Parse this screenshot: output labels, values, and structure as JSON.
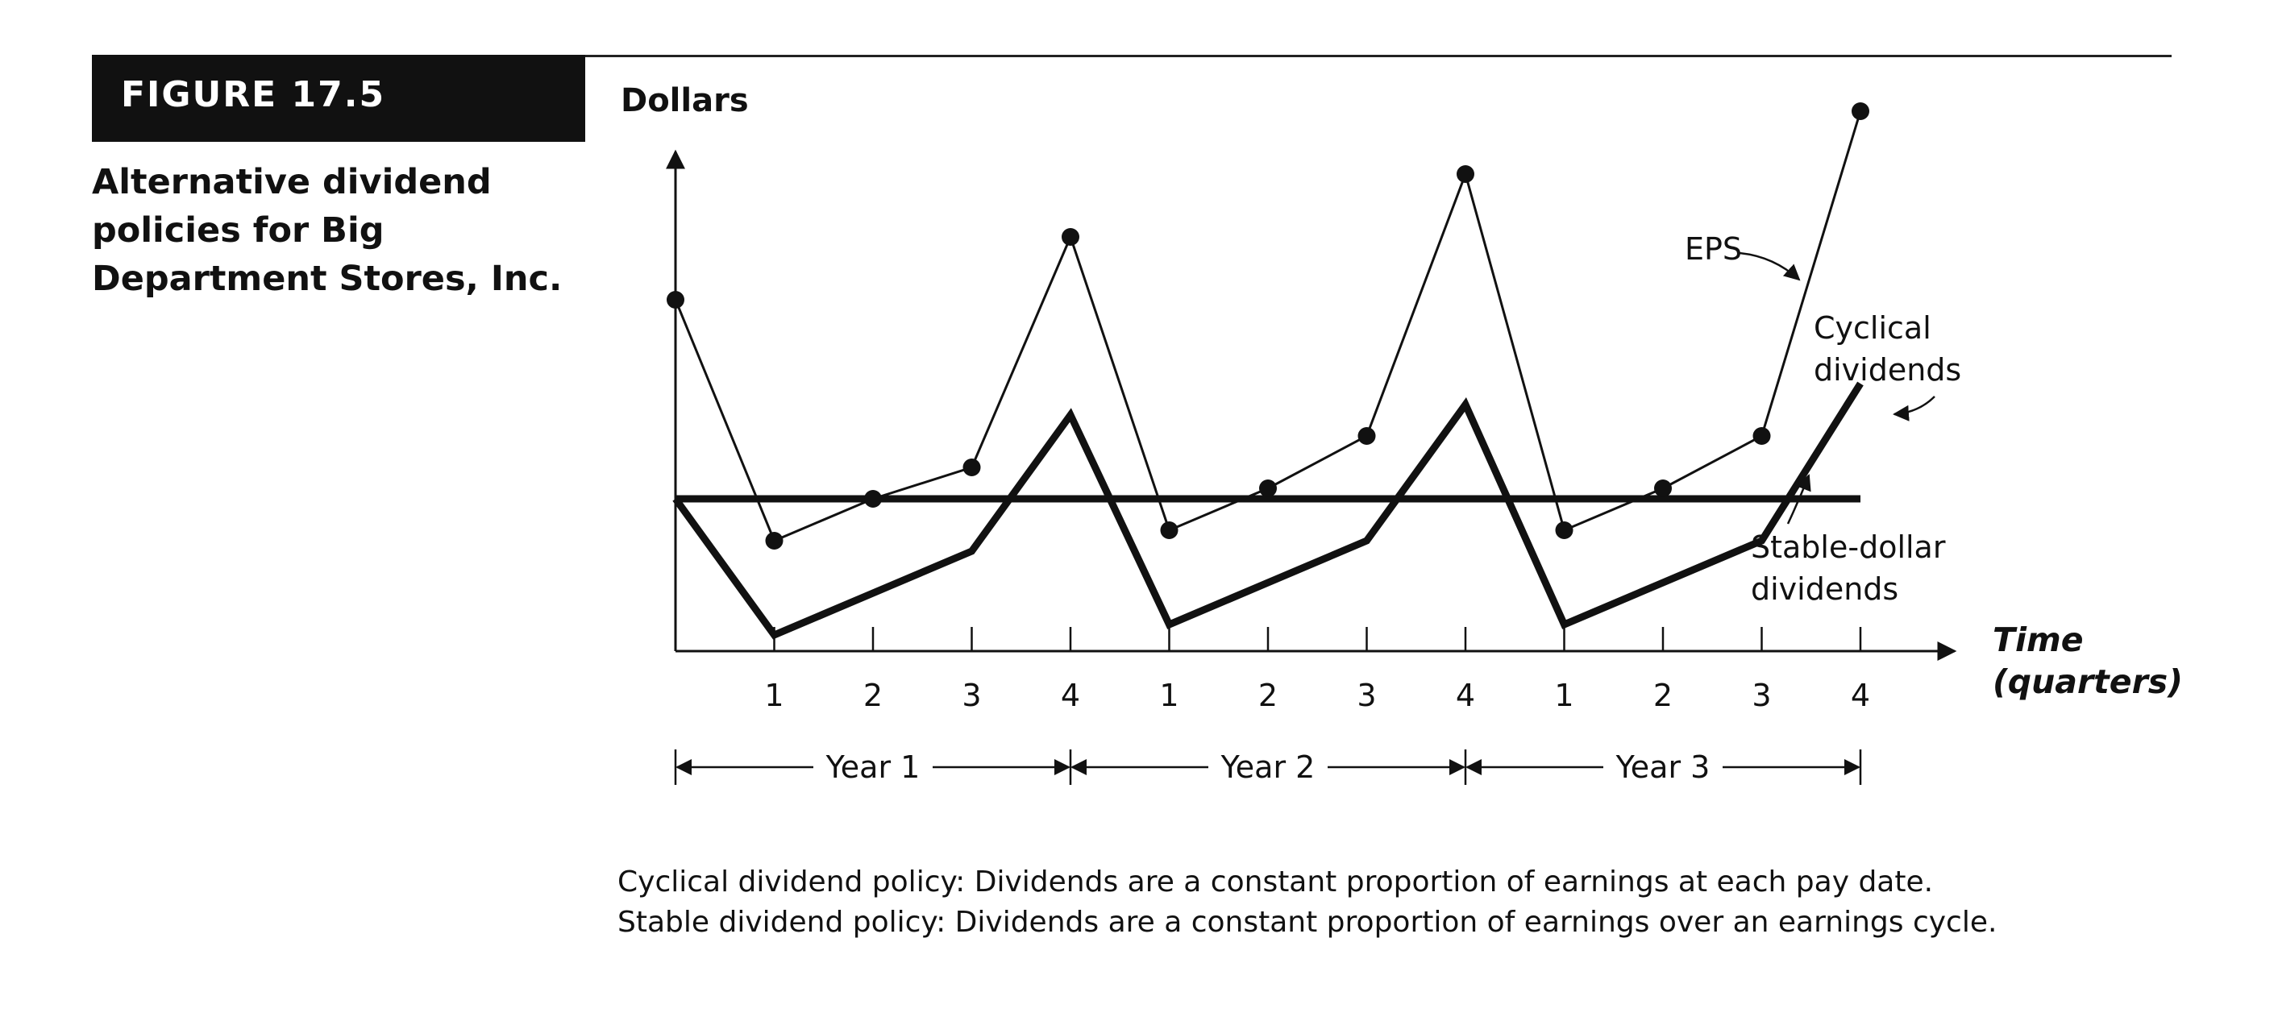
{
  "figure": {
    "label": "FIGURE 17.5",
    "caption": "Alternative dividend policies for Big Department Stores, Inc."
  },
  "notes": [
    "Cyclical dividend policy: Dividends are a constant proportion of earnings at each pay date.",
    "Stable dividend policy: Dividends are a constant proportion of earnings over an earnings cycle."
  ],
  "chart_data": {
    "type": "line",
    "ylabel": "Dollars",
    "xlabel_lines": [
      "Time",
      "(quarters)"
    ],
    "x_ticks": [
      "1",
      "2",
      "3",
      "4",
      "1",
      "2",
      "3",
      "4",
      "1",
      "2",
      "3",
      "4"
    ],
    "periods": [
      "Year 1",
      "Year 2",
      "Year 3"
    ],
    "y_ticks_shown": false,
    "grid": false,
    "x": [
      0,
      1,
      2,
      3,
      4,
      5,
      6,
      7,
      8,
      9,
      10,
      11,
      12
    ],
    "series": [
      {
        "name": "EPS",
        "style": "thin line with dots",
        "values": [
          5.6,
          3.3,
          3.7,
          4.0,
          6.2,
          3.4,
          3.8,
          4.3,
          6.8,
          3.4,
          3.8,
          4.3,
          7.4
        ]
      },
      {
        "name": "Cyclical dividends",
        "style": "thick line",
        "values": [
          3.7,
          2.4,
          2.8,
          3.2,
          4.5,
          2.5,
          2.9,
          3.3,
          4.6,
          2.5,
          2.9,
          3.3,
          4.8
        ]
      },
      {
        "name": "Stable-dollar dividends",
        "style": "thick line",
        "values": [
          3.7,
          3.7,
          3.7,
          3.7,
          3.7,
          3.7,
          3.7,
          3.7,
          3.7,
          3.7,
          3.7,
          3.7,
          3.7
        ]
      }
    ],
    "annotations": [
      {
        "text": "EPS",
        "target": "EPS"
      },
      {
        "text_lines": [
          "Cyclical",
          "dividends"
        ],
        "target": "Cyclical dividends"
      },
      {
        "text_lines": [
          "Stable-dollar",
          "dividends"
        ],
        "target": "Stable-dollar dividends"
      }
    ]
  }
}
